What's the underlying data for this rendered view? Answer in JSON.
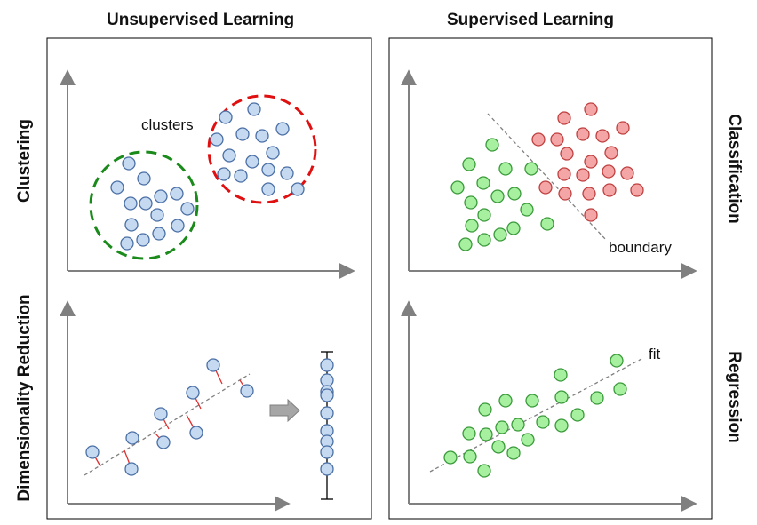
{
  "headings": {
    "left": "Unsupervised Learning",
    "right": "Supervised Learning"
  },
  "row_labels": {
    "left_top": "Clustering",
    "left_bottom": "Dimensionality Reduction",
    "right_top": "Classification",
    "right_bottom": "Regression"
  },
  "annotations": {
    "clusters": "clusters",
    "boundary": "boundary",
    "fit": "fit"
  },
  "colors": {
    "blue_fill": "#c5d9f1",
    "blue_stroke": "#4a6fa5",
    "green_fill": "#a6f0a0",
    "green_stroke": "#3a9a3a",
    "red_fill": "#f4a6a6",
    "red_stroke": "#c04040",
    "axis": "#808080",
    "cluster_green": "#1a8a1a",
    "cluster_red": "#e01010",
    "projection": "#e03030"
  }
}
